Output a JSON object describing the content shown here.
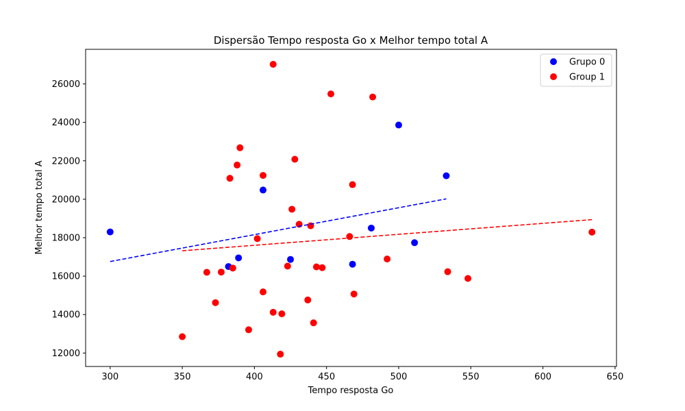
{
  "chart_data": {
    "type": "scatter",
    "title": "Dispersão Tempo resposta Go x Melhor tempo total A",
    "xlabel": "Tempo resposta Go",
    "ylabel": "Melhor tempo total A",
    "xlim": [
      283,
      651
    ],
    "ylim": [
      11300,
      27800
    ],
    "xticks": [
      300,
      350,
      400,
      450,
      500,
      550,
      600,
      650
    ],
    "yticks": [
      12000,
      14000,
      16000,
      18000,
      20000,
      22000,
      24000,
      26000
    ],
    "grid": false,
    "legend_position": "top-right",
    "series": [
      {
        "name": "Grupo 0",
        "color": "#0000ff",
        "points": [
          [
            300,
            18300
          ],
          [
            382,
            16500
          ],
          [
            389,
            16950
          ],
          [
            406,
            20480
          ],
          [
            425,
            16870
          ],
          [
            468,
            16620
          ],
          [
            481,
            18500
          ],
          [
            500,
            23860
          ],
          [
            511,
            17740
          ],
          [
            533,
            21220
          ]
        ],
        "trend": {
          "style": "dashed",
          "x": [
            300,
            533
          ],
          "y": [
            16760,
            20020
          ]
        }
      },
      {
        "name": "Group 1",
        "color": "#ff0000",
        "points": [
          [
            350,
            12850
          ],
          [
            367,
            16200
          ],
          [
            373,
            14620
          ],
          [
            377,
            16210
          ],
          [
            383,
            21090
          ],
          [
            385,
            16420
          ],
          [
            388,
            21780
          ],
          [
            390,
            22680
          ],
          [
            396,
            13210
          ],
          [
            402,
            17950
          ],
          [
            406,
            21240
          ],
          [
            406,
            15180
          ],
          [
            413,
            14120
          ],
          [
            413,
            27020
          ],
          [
            418,
            11940
          ],
          [
            419,
            14040
          ],
          [
            423,
            16520
          ],
          [
            426,
            19480
          ],
          [
            428,
            22080
          ],
          [
            431,
            18700
          ],
          [
            437,
            14760
          ],
          [
            439,
            18620
          ],
          [
            441,
            13570
          ],
          [
            443,
            16480
          ],
          [
            447,
            16440
          ],
          [
            453,
            25480
          ],
          [
            466,
            18060
          ],
          [
            468,
            20760
          ],
          [
            469,
            15070
          ],
          [
            482,
            25320
          ],
          [
            492,
            16890
          ],
          [
            534,
            16230
          ],
          [
            548,
            15880
          ],
          [
            634,
            18290
          ]
        ],
        "trend": {
          "style": "dashed",
          "x": [
            350,
            634
          ],
          "y": [
            17320,
            18940
          ]
        }
      }
    ]
  }
}
